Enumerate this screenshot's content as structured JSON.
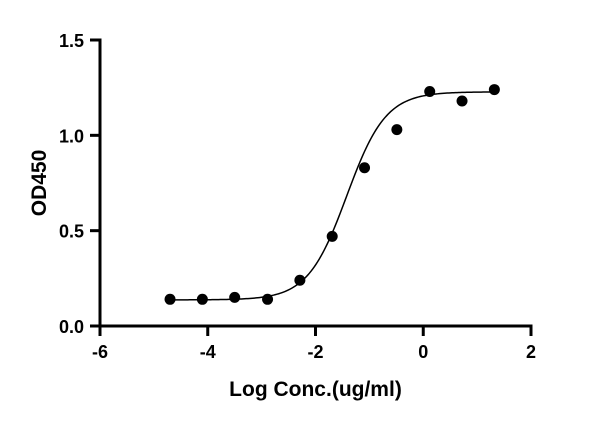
{
  "chart_data": {
    "type": "scatter",
    "xlabel": "Log Conc.(ug/ml)",
    "ylabel": "OD450",
    "xlim": [
      -6,
      2
    ],
    "ylim": [
      0,
      1.5
    ],
    "xticks": [
      -6,
      -4,
      -2,
      0,
      2
    ],
    "yticks": [
      0.0,
      0.5,
      1.0,
      1.5
    ],
    "xtick_labels": [
      "-6",
      "-4",
      "-2",
      "0",
      "2"
    ],
    "ytick_labels": [
      "0.0",
      "0.5",
      "1.0",
      "1.5"
    ],
    "grid": false,
    "legend": "none",
    "series": [
      {
        "x": [
          -4.7,
          -4.1,
          -3.5,
          -2.89,
          -2.29,
          -1.69,
          -1.09,
          -0.49,
          0.12,
          0.72,
          1.32
        ],
        "y": [
          0.14,
          0.14,
          0.15,
          0.14,
          0.24,
          0.47,
          0.83,
          1.03,
          1.23,
          1.18,
          1.24
        ],
        "color": "#000000"
      }
    ],
    "fit": {
      "type": "4PL",
      "bottom": 0.137,
      "top": 1.228,
      "logEC50": -1.42,
      "hillslope": 1.2,
      "x_range": [
        -4.7,
        1.32
      ]
    }
  }
}
